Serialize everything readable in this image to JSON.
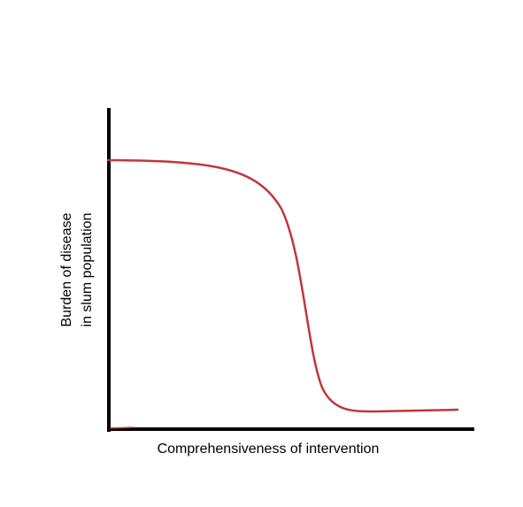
{
  "x_axis_label": "Comprehensiveness of intervention",
  "y_axis_label": [
    "Burden of disease",
    "in slum population"
  ]
}
